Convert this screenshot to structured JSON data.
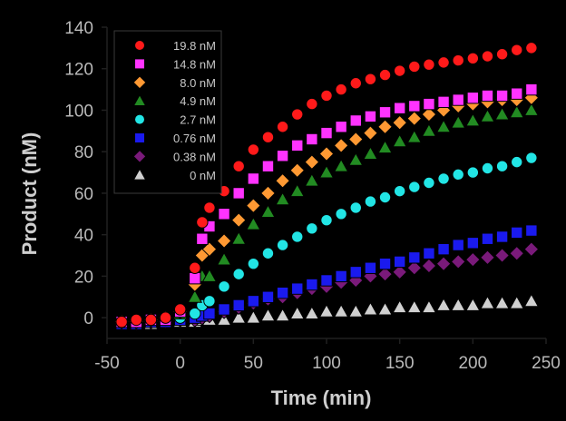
{
  "chart_data": {
    "type": "scatter",
    "xlabel": "Time (min)",
    "ylabel": "Product (nM)",
    "xlim": [
      -50,
      250
    ],
    "ylim": [
      -10,
      140
    ],
    "x_ticks": [
      -50,
      0,
      50,
      100,
      150,
      200,
      250
    ],
    "y_ticks": [
      0,
      20,
      40,
      60,
      80,
      100,
      120,
      140
    ],
    "x_tick_labels": [
      "-50",
      "0",
      "50",
      "100",
      "150",
      "200",
      "250"
    ],
    "y_tick_labels": [
      "0",
      "20",
      "40",
      "60",
      "80",
      "100",
      "120",
      "140"
    ],
    "grid": false,
    "legend_position": "top-left",
    "x": [
      -40,
      -30,
      -20,
      -10,
      0,
      10,
      15,
      20,
      30,
      40,
      50,
      60,
      70,
      80,
      90,
      100,
      110,
      120,
      130,
      140,
      150,
      160,
      170,
      180,
      190,
      200,
      210,
      220,
      230,
      240
    ],
    "series": [
      {
        "name": "19.8 nM",
        "marker": "circle",
        "color": "#ff1a1a",
        "values": [
          -2,
          -1,
          -1,
          0,
          4,
          24,
          46,
          53,
          61,
          73,
          81,
          87,
          92,
          98,
          103,
          107,
          110,
          113,
          115,
          117,
          119,
          121,
          122,
          123,
          124,
          125,
          126,
          127,
          129,
          130
        ]
      },
      {
        "name": "14.8 nM",
        "marker": "square",
        "color": "#ff33ff",
        "values": [
          -2,
          -2,
          -1,
          -1,
          3,
          19,
          38,
          44,
          50,
          60,
          67,
          73,
          78,
          83,
          86,
          89,
          92,
          95,
          97,
          99,
          101,
          102,
          103,
          104,
          105,
          106,
          107,
          107,
          108,
          110
        ]
      },
      {
        "name": "8.0 nM",
        "marker": "diamond",
        "color": "#ff9933",
        "values": [
          -2,
          -2,
          -1,
          0,
          3,
          16,
          30,
          33,
          37,
          47,
          54,
          60,
          66,
          71,
          75,
          79,
          83,
          86,
          89,
          92,
          94,
          96,
          98,
          100,
          102,
          103,
          104,
          105,
          105,
          106
        ]
      },
      {
        "name": "4.9 nM",
        "marker": "triangle",
        "color": "#228b22",
        "values": [
          -2,
          -2,
          -1,
          -1,
          2,
          10,
          20,
          20,
          28,
          38,
          45,
          51,
          57,
          61,
          66,
          70,
          73,
          76,
          79,
          82,
          85,
          87,
          90,
          92,
          94,
          95,
          97,
          98,
          99,
          100
        ]
      },
      {
        "name": "2.7 nM",
        "marker": "circle",
        "color": "#22e5e5",
        "values": [
          -2,
          -2,
          -1,
          -1,
          0,
          2,
          6,
          8,
          15,
          21,
          26,
          31,
          35,
          39,
          43,
          47,
          50,
          53,
          56,
          58,
          61,
          63,
          65,
          67,
          69,
          70,
          72,
          73,
          75,
          77
        ]
      },
      {
        "name": "0.76 nM",
        "marker": "square",
        "color": "#1a1aee",
        "values": [
          -3,
          -3,
          -2,
          -2,
          -1,
          0,
          1,
          2,
          4,
          6,
          8,
          10,
          12,
          14,
          16,
          18,
          20,
          22,
          24,
          26,
          27,
          29,
          31,
          33,
          35,
          36,
          38,
          39,
          41,
          42
        ]
      },
      {
        "name": "0.38 nM",
        "marker": "diamond",
        "color": "#7a1a7a",
        "values": [
          -3,
          -3,
          -2,
          -2,
          -1,
          -1,
          0,
          1,
          3,
          5,
          7,
          9,
          10,
          12,
          14,
          15,
          17,
          18,
          20,
          21,
          22,
          24,
          25,
          26,
          27,
          28,
          29,
          30,
          31,
          33
        ]
      },
      {
        "name": "0 nM",
        "marker": "triangle",
        "color": "#d0d0d0",
        "values": [
          -3,
          -3,
          -3,
          -2,
          -2,
          -2,
          -1,
          -1,
          -1,
          0,
          0,
          1,
          1,
          2,
          2,
          3,
          3,
          3,
          4,
          4,
          5,
          5,
          5,
          6,
          6,
          6,
          7,
          7,
          7,
          8
        ]
      }
    ]
  }
}
